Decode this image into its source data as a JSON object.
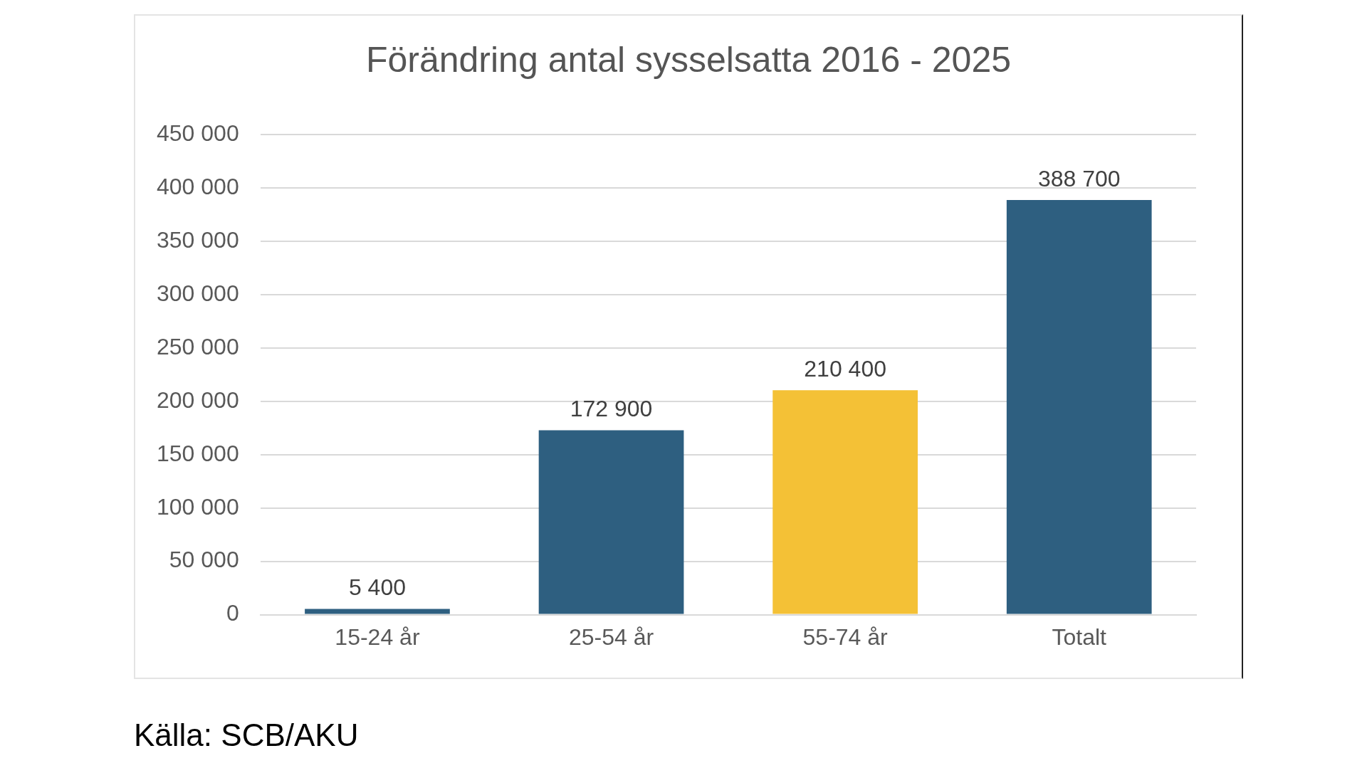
{
  "chart_data": {
    "type": "bar",
    "title": "Förändring antal sysselsatta 2016 - 2025",
    "categories": [
      "15-24 år",
      "25-54 år",
      "55-74 år",
      "Totalt"
    ],
    "values": [
      5400,
      172900,
      210400,
      388700
    ],
    "colors": [
      "#2e5f80",
      "#2e5f80",
      "#f4c136",
      "#2e5f80"
    ],
    "value_labels": [
      "5 400",
      "172 900",
      "210 400",
      "388 700"
    ],
    "ylim": [
      0,
      450000
    ],
    "yticks": [
      {
        "value": 0,
        "label": "0"
      },
      {
        "value": 50000,
        "label": "50 000"
      },
      {
        "value": 100000,
        "label": "100 000"
      },
      {
        "value": 150000,
        "label": "150 000"
      },
      {
        "value": 200000,
        "label": "200 000"
      },
      {
        "value": 250000,
        "label": "250 000"
      },
      {
        "value": 300000,
        "label": "300 000"
      },
      {
        "value": 350000,
        "label": "350 000"
      },
      {
        "value": 400000,
        "label": "400 000"
      },
      {
        "value": 450000,
        "label": "450 000"
      }
    ],
    "grid": "y",
    "legend": false,
    "annotations": [
      "Källa: SCB/AKU"
    ]
  }
}
